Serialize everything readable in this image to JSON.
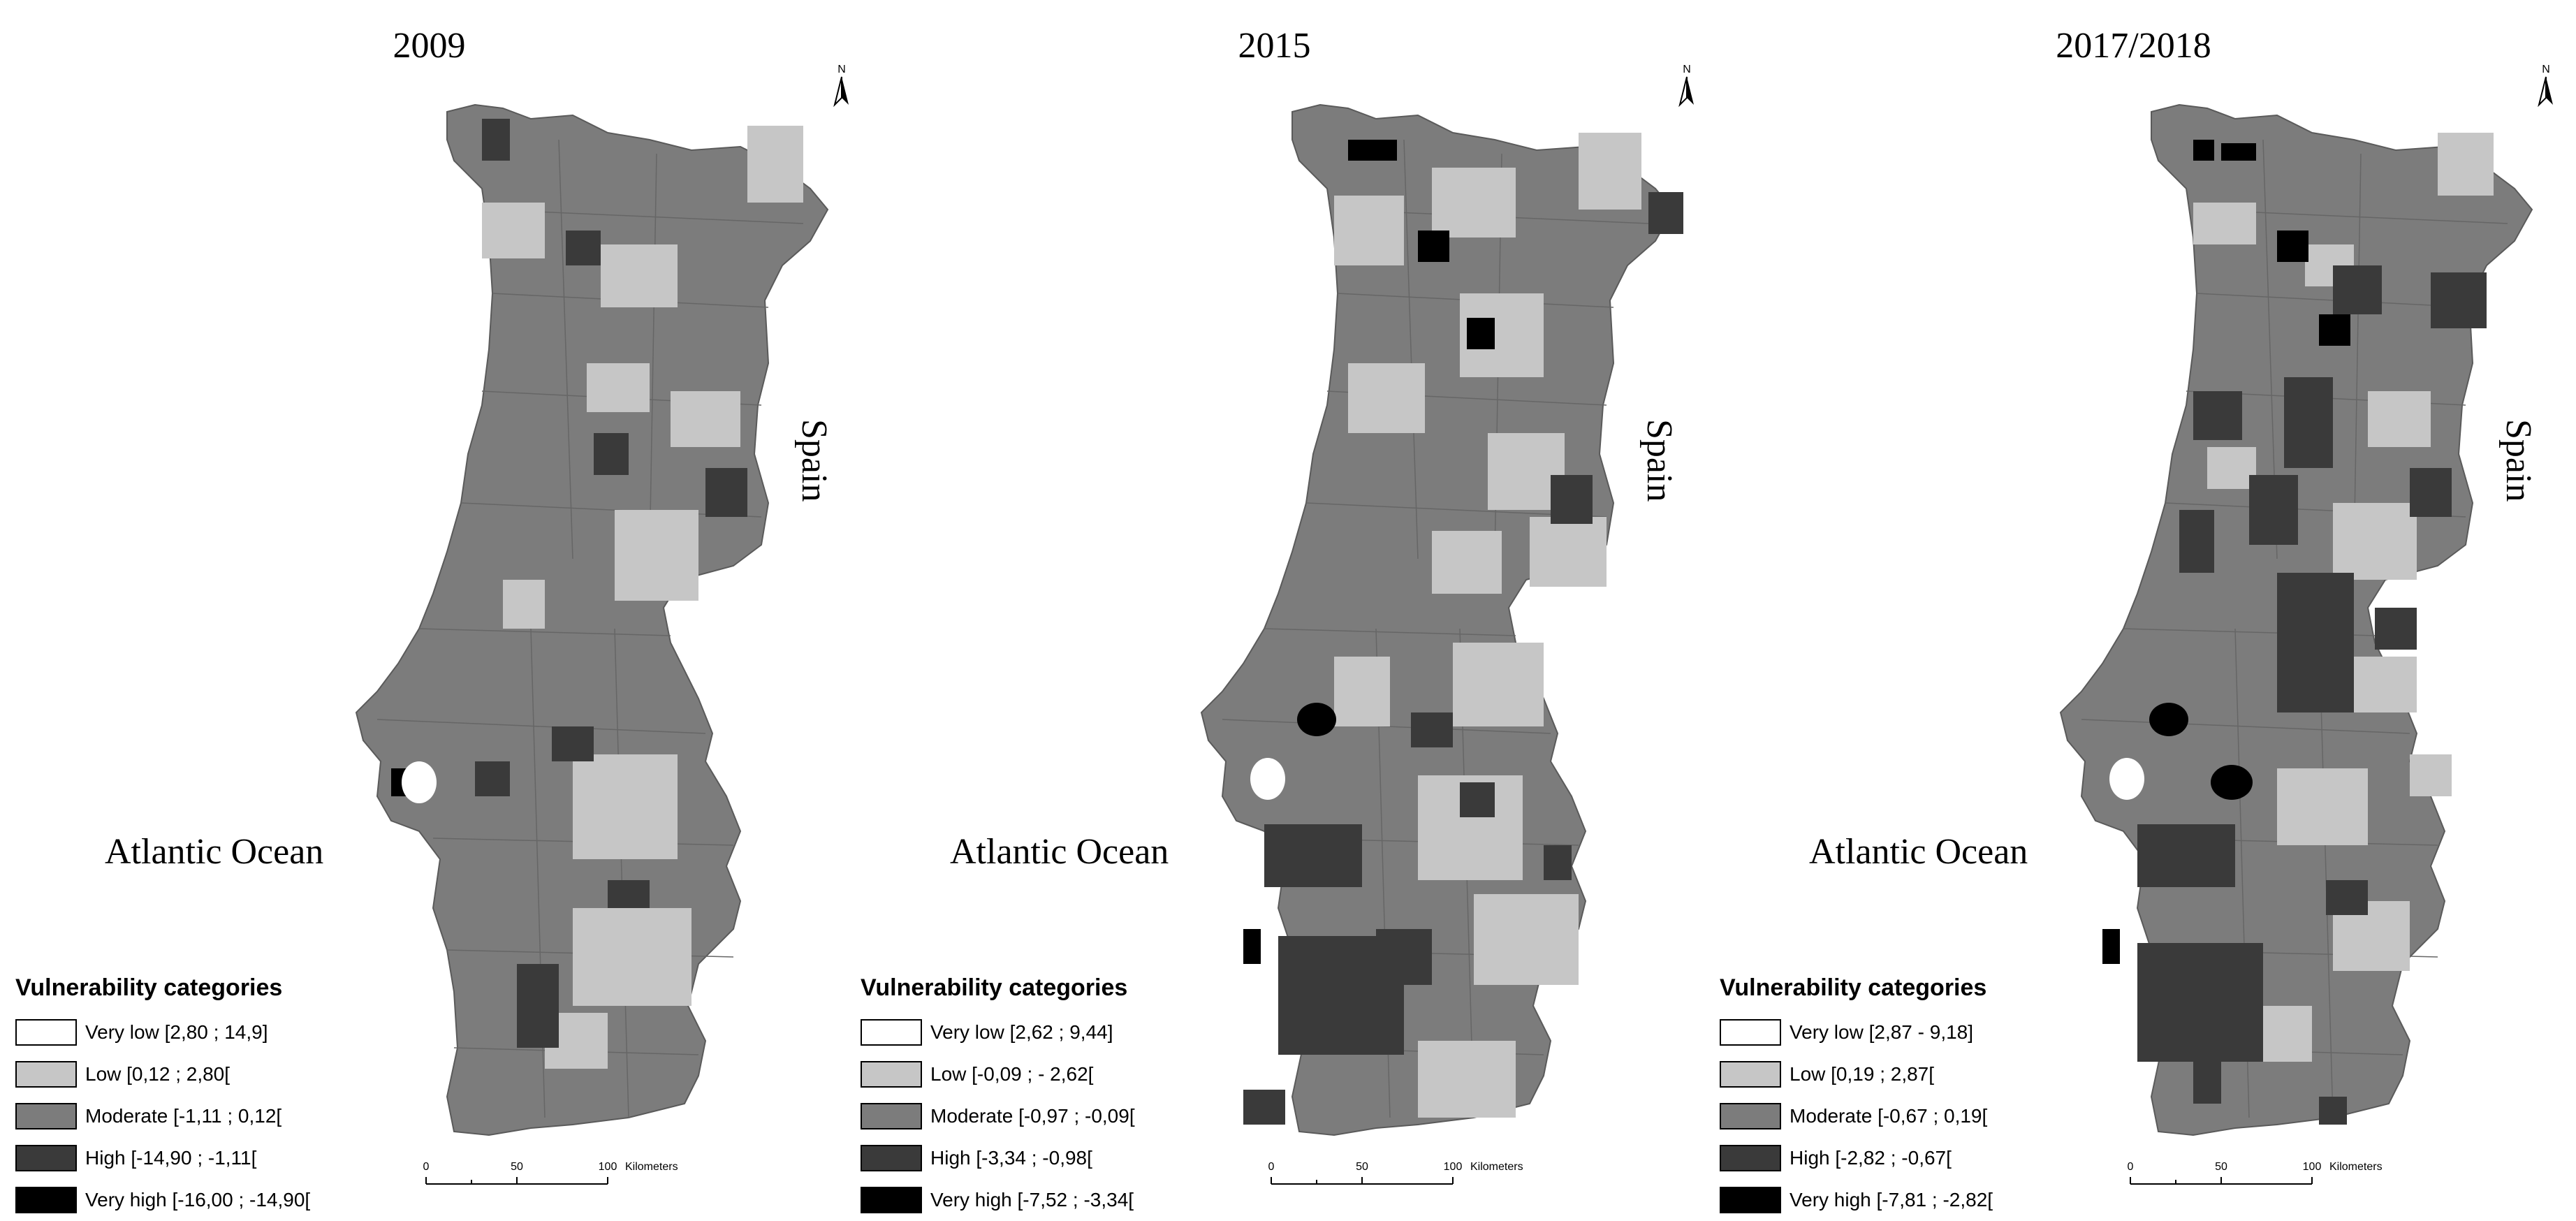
{
  "panels": [
    {
      "year": "2009",
      "ocean_label": "Atlantic Ocean",
      "country_label": "Spain",
      "north_label": "N",
      "legend": {
        "title": "Vulnerability categories",
        "items": [
          {
            "label": "Very low [2,80 ; 14,9]",
            "color": "#ffffff"
          },
          {
            "label": "Low [0,12 ; 2,80[",
            "color": "#c6c6c6"
          },
          {
            "label": "Moderate [-1,11 ; 0,12[",
            "color": "#7c7c7c"
          },
          {
            "label": "High [-14,90 ; -1,11[",
            "color": "#3a3a3a"
          },
          {
            "label": "Very high [-16,00 ; -14,90[",
            "color": "#000000"
          }
        ]
      },
      "scale": {
        "ticks": [
          "0",
          "50",
          "100"
        ],
        "unit": "Kilometers"
      }
    },
    {
      "year": "2015",
      "ocean_label": "Atlantic Ocean",
      "country_label": "Spain",
      "north_label": "N",
      "legend": {
        "title": "Vulnerability categories",
        "items": [
          {
            "label": "Very low [2,62 ; 9,44]",
            "color": "#ffffff"
          },
          {
            "label": "Low [-0,09 ; - 2,62[",
            "color": "#c6c6c6"
          },
          {
            "label": "Moderate [-0,97 ; -0,09[",
            "color": "#7c7c7c"
          },
          {
            "label": "High [-3,34 ; -0,98[",
            "color": "#3a3a3a"
          },
          {
            "label": "Very high [-7,52 ; -3,34[",
            "color": "#000000"
          }
        ]
      },
      "scale": {
        "ticks": [
          "0",
          "50",
          "100"
        ],
        "unit": "Kilometers"
      }
    },
    {
      "year": "2017/2018",
      "ocean_label": "Atlantic Ocean",
      "country_label": "Spain",
      "north_label": "N",
      "legend": {
        "title": "Vulnerability categories",
        "items": [
          {
            "label": "Very low [2,87 - 9,18]",
            "color": "#ffffff"
          },
          {
            "label": "Low [0,19 ; 2,87[",
            "color": "#c6c6c6"
          },
          {
            "label": "Moderate [-0,67 ; 0,19[",
            "color": "#7c7c7c"
          },
          {
            "label": "High [-2,82 ; -0,67[",
            "color": "#3a3a3a"
          },
          {
            "label": "Very high [-7,81 ; -2,82[",
            "color": "#000000"
          }
        ]
      },
      "scale": {
        "ticks": [
          "0",
          "50",
          "100"
        ],
        "unit": "Kilometers"
      }
    }
  ]
}
